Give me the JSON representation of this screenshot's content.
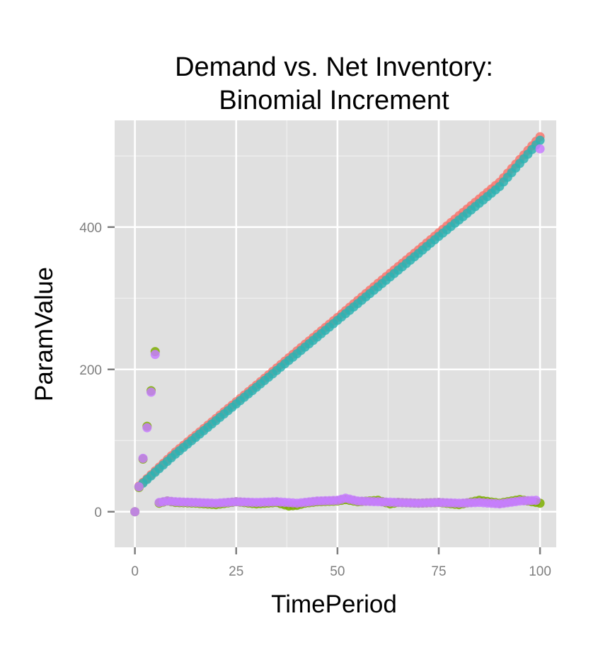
{
  "chart_data": {
    "type": "scatter",
    "title_lines": [
      "Demand vs. Net Inventory:",
      "Binomial Increment"
    ],
    "xlabel": "TimePeriod",
    "ylabel": "ParamValue",
    "xlim": [
      -5,
      104
    ],
    "ylim": [
      -50,
      550
    ],
    "x_ticks": [
      0,
      25,
      50,
      75,
      100
    ],
    "y_ticks": [
      0,
      200,
      400
    ],
    "grid": true,
    "legend": "none",
    "series": [
      {
        "color": "#F8766D",
        "note": "linear ramp from t=1 to t=100",
        "x": [
          1,
          10,
          20,
          30,
          40,
          50,
          60,
          70,
          75,
          80,
          90,
          100
        ],
        "y": [
          36,
          84,
          131,
          178,
          226,
          273,
          321,
          368,
          392,
          416,
          463,
          527
        ]
      },
      {
        "color": "#2EB3B3",
        "note": "linear ramp from t=1 to t=100",
        "x": [
          1,
          10,
          20,
          30,
          40,
          50,
          60,
          70,
          75,
          80,
          90,
          100
        ],
        "y": [
          35,
          81,
          128,
          175,
          222,
          269,
          316,
          363,
          387,
          410,
          457,
          522
        ]
      },
      {
        "color": "#7CAE00",
        "x": [
          0,
          1,
          2,
          3,
          4,
          5,
          6,
          8,
          10,
          15,
          20,
          25,
          30,
          35,
          38,
          40,
          42,
          45,
          50,
          52,
          55,
          60,
          63,
          65,
          70,
          75,
          80,
          85,
          90,
          95,
          100
        ],
        "y": [
          0,
          34,
          74,
          120,
          170,
          225,
          12,
          15,
          13,
          12,
          10,
          14,
          11,
          13,
          8,
          9,
          12,
          14,
          15,
          17,
          14,
          16,
          11,
          13,
          12,
          13,
          10,
          16,
          12,
          17,
          12
        ]
      },
      {
        "color": "#C77CFF",
        "x": [
          0,
          1,
          2,
          3,
          4,
          5,
          6,
          8,
          10,
          15,
          20,
          25,
          30,
          35,
          40,
          45,
          50,
          52,
          55,
          60,
          65,
          70,
          75,
          80,
          85,
          90,
          95,
          99,
          100
        ],
        "y": [
          0,
          35,
          75,
          118,
          168,
          221,
          13,
          15,
          14,
          13,
          12,
          14,
          13,
          14,
          12,
          15,
          16,
          19,
          15,
          14,
          13,
          12,
          13,
          12,
          13,
          11,
          15,
          16,
          510
        ]
      }
    ]
  }
}
